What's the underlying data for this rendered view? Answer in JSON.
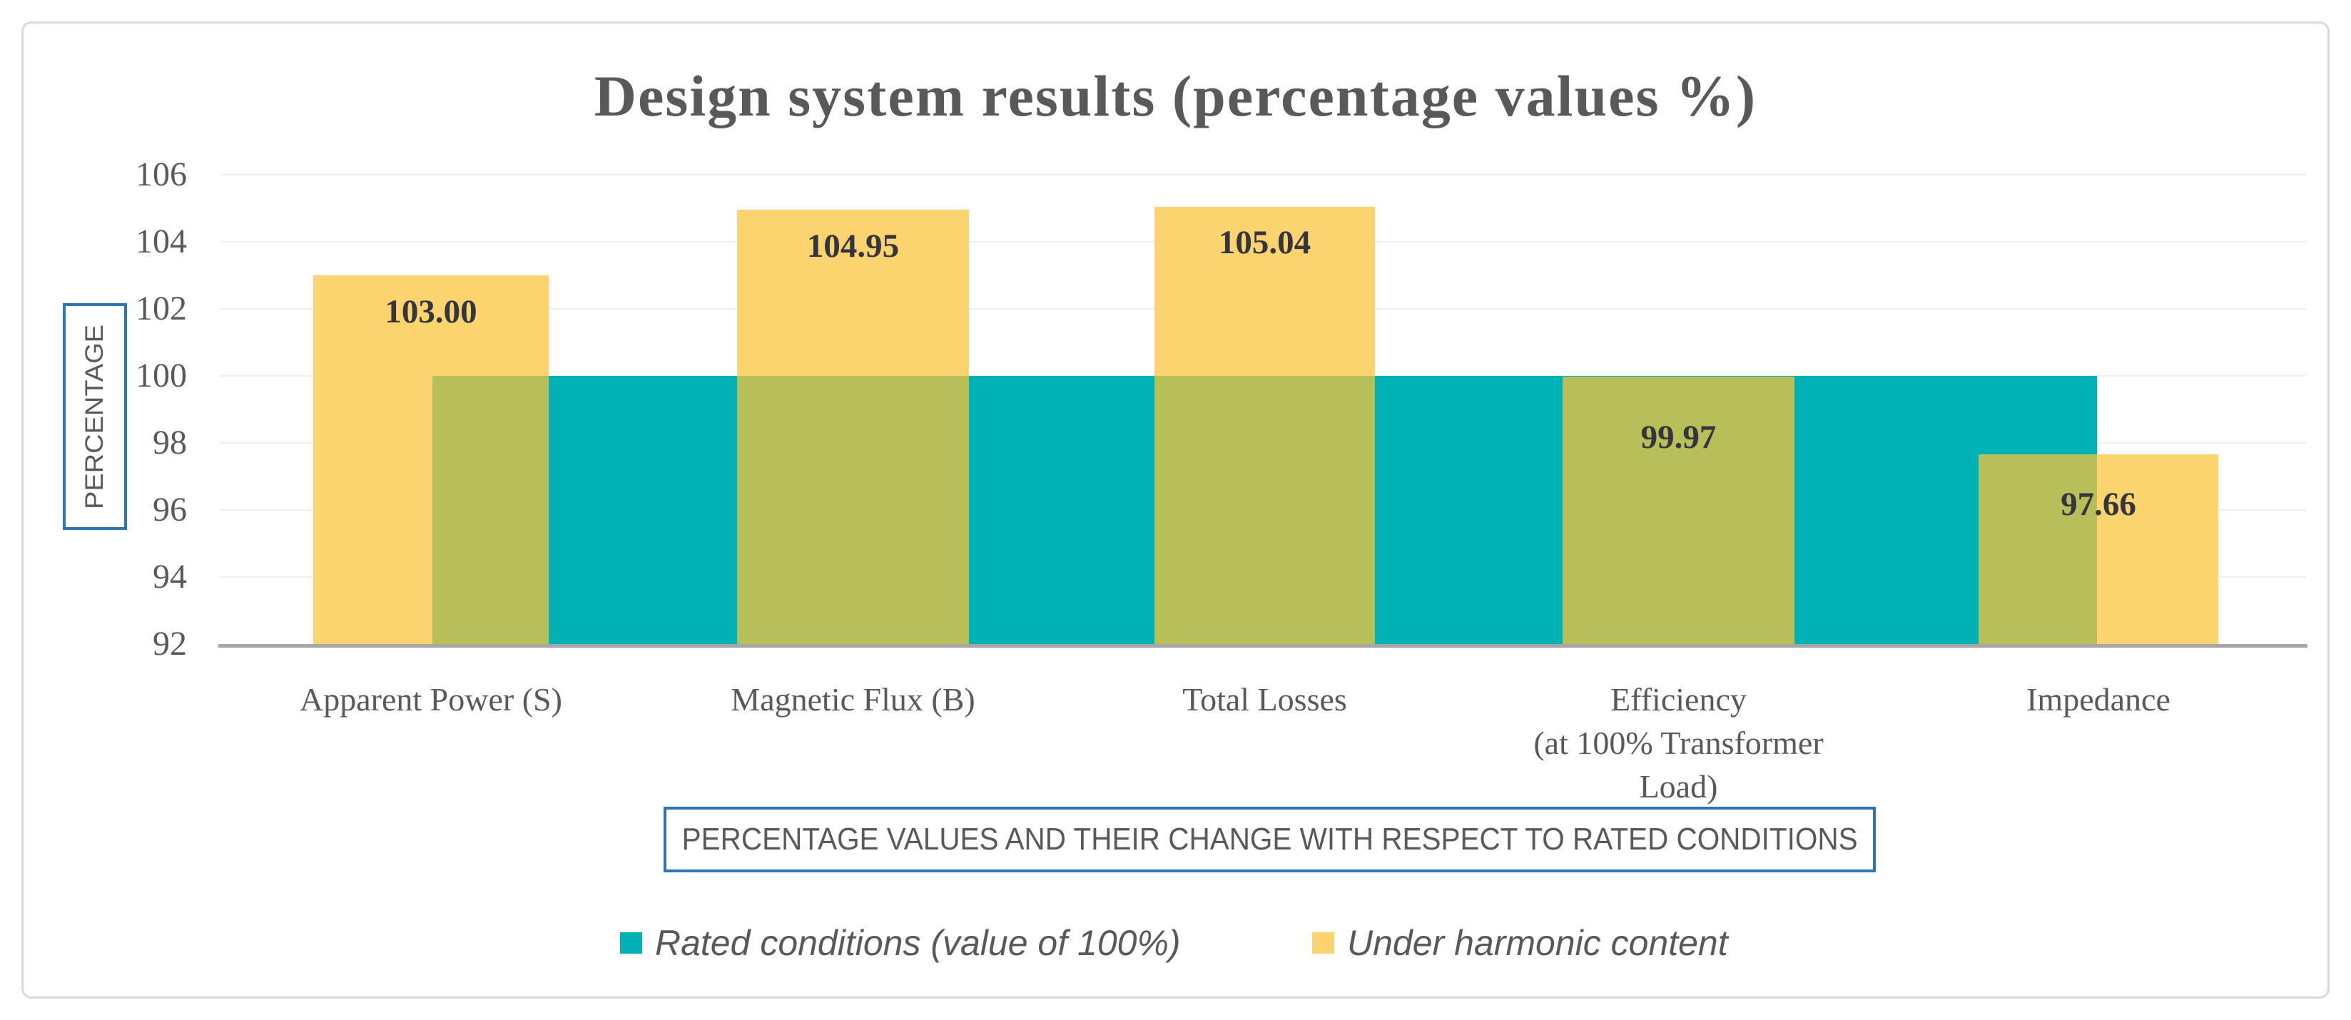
{
  "chart_data": {
    "type": "bar",
    "title": "Design system results (percentage values %)",
    "xlabel": "PERCENTAGE VALUES AND THEIR CHANGE WITH RESPECT TO RATED CONDITIONS",
    "ylabel": "PERCENTAGE",
    "ylim": [
      92,
      106
    ],
    "ytick_step": 2,
    "yticks": [
      "106",
      "104",
      "102",
      "100",
      "98",
      "96",
      "94",
      "92"
    ],
    "grid": true,
    "legend_position": "bottom",
    "categories": [
      "Apparent  Power (S)",
      "Magnetic  Flux (B)",
      "Total  Losses",
      "Efficiency\n(at 100% Transformer\nLoad)",
      "Impedance"
    ],
    "series": [
      {
        "name": "Rated conditions (value of 100%)",
        "color": "#00b1b5",
        "values": [
          100,
          100,
          100,
          100,
          100
        ]
      },
      {
        "name": "Under harmonic content",
        "color": "#fbd36f",
        "values": [
          103.0,
          104.95,
          105.04,
          99.97,
          97.66
        ],
        "labels": [
          "103.00",
          "104.95",
          "105.04",
          "99.97",
          "97.66"
        ]
      }
    ],
    "overlap_color": "#b9bf58",
    "colors": {
      "title_text": "#595959",
      "axis_text": "#595959",
      "data_label_text": "#35353e",
      "axis_line": "#a6a6a6",
      "gridline": "#efefef",
      "axis_title_border": "#2e75b6",
      "frame_border": "#d9d9d9"
    }
  }
}
